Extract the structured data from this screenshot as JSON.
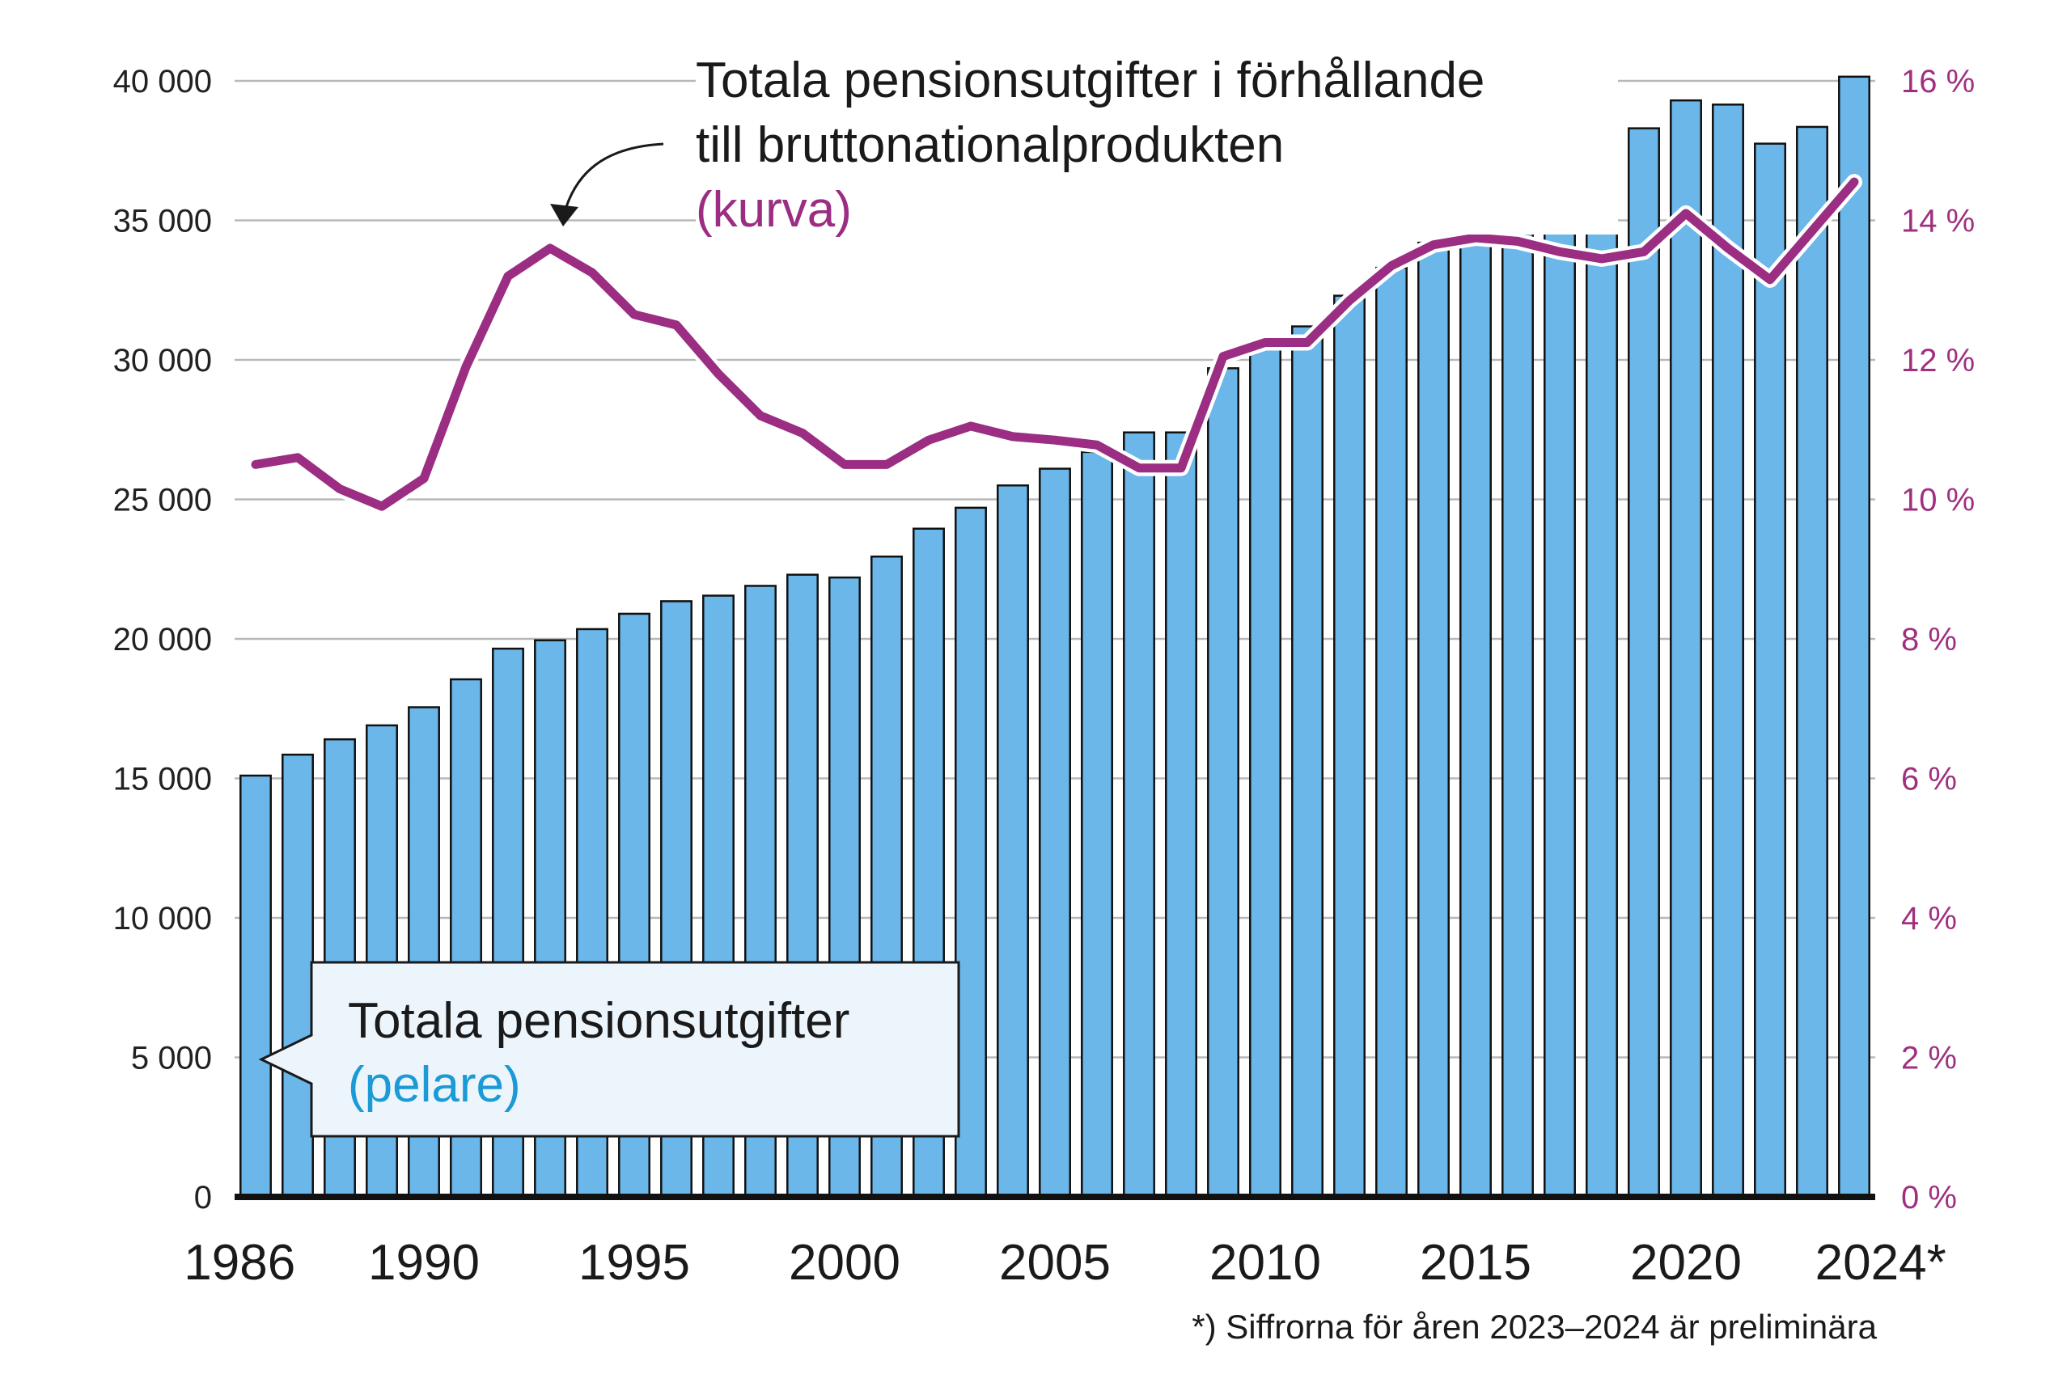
{
  "chart_data": {
    "type": "bar",
    "categories": [
      "1986",
      "1987",
      "1988",
      "1989",
      "1990",
      "1991",
      "1992",
      "1993",
      "1994",
      "1995",
      "1996",
      "1997",
      "1998",
      "1999",
      "2000",
      "2001",
      "2002",
      "2003",
      "2004",
      "2005",
      "2006",
      "2007",
      "2008",
      "2009",
      "2010",
      "2011",
      "2012",
      "2013",
      "2014",
      "2015",
      "2016",
      "2017",
      "2018",
      "2019",
      "2020",
      "2021",
      "2022",
      "2023",
      "2024"
    ],
    "x_tick_labels": [
      "1986",
      "1990",
      "1995",
      "2000",
      "2005",
      "2010",
      "2015",
      "2020",
      "2024*"
    ],
    "bar_series": {
      "name": "Totala pensionsutgifter",
      "axis": "left",
      "color": "#6bb7ea",
      "values": [
        15100,
        15850,
        16400,
        16900,
        17550,
        18550,
        19650,
        19950,
        20350,
        20900,
        21350,
        21550,
        21900,
        22300,
        22200,
        22950,
        23950,
        24700,
        25500,
        26100,
        26700,
        27400,
        27400,
        29700,
        30700,
        31200,
        32300,
        33300,
        34200,
        35400,
        36200,
        36950,
        37550,
        38300,
        39300,
        39150,
        37750,
        38350,
        40150
      ]
    },
    "line_series": {
      "name": "Totala pensionsutgifter i förhållande till bruttonationalprodukten",
      "axis": "right",
      "color": "#9b2d82",
      "values": [
        10.5,
        10.6,
        10.15,
        9.9,
        10.3,
        11.9,
        13.2,
        13.6,
        13.25,
        12.65,
        12.5,
        11.8,
        11.2,
        10.95,
        10.5,
        10.5,
        10.85,
        11.05,
        10.9,
        10.85,
        10.78,
        10.45,
        10.45,
        12.05,
        12.25,
        12.25,
        12.85,
        13.35,
        13.65,
        13.75,
        13.7,
        13.55,
        13.45,
        13.55,
        14.1,
        13.6,
        13.15,
        13.85,
        14.55
      ]
    },
    "y_left": {
      "ylim": [
        0,
        40000
      ],
      "ticks": [
        "0",
        "5 000",
        "10 000",
        "15 000",
        "20 000",
        "25 000",
        "30 000",
        "35 000",
        "40 000"
      ]
    },
    "y_right": {
      "ylim": [
        0,
        16
      ],
      "ticks": [
        "0 %",
        "2 %",
        "4 %",
        "6 %",
        "8 %",
        "10 %",
        "12 %",
        "14 %",
        "16 %"
      ]
    },
    "grid": true,
    "annotations": {
      "curve_label_line1": "Totala pensionsutgifter i förhållande",
      "curve_label_line2": "till bruttonationalprodukten",
      "curve_label_line3": "(kurva)",
      "bars_label_line1": "Totala pensionsutgifter",
      "bars_label_line2": "(pelare)"
    },
    "footnote": "*) Siffrorna för åren 2023–2024 är preliminära"
  }
}
